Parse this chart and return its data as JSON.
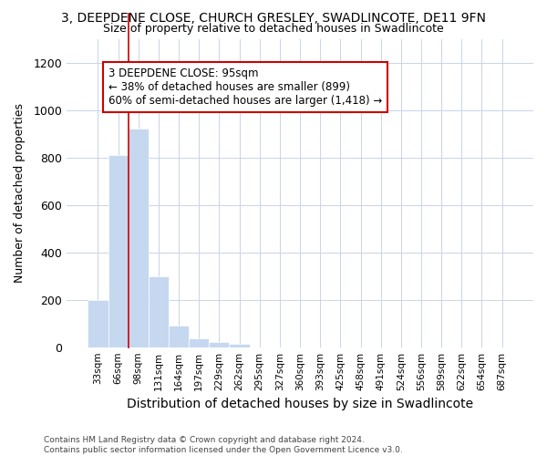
{
  "title": "3, DEEPDENE CLOSE, CHURCH GRESLEY, SWADLINCOTE, DE11 9FN",
  "subtitle": "Size of property relative to detached houses in Swadlincote",
  "xlabel": "Distribution of detached houses by size in Swadlincote",
  "ylabel": "Number of detached properties",
  "categories": [
    "33sqm",
    "66sqm",
    "98sqm",
    "131sqm",
    "164sqm",
    "197sqm",
    "229sqm",
    "262sqm",
    "295sqm",
    "327sqm",
    "360sqm",
    "393sqm",
    "425sqm",
    "458sqm",
    "491sqm",
    "524sqm",
    "556sqm",
    "589sqm",
    "622sqm",
    "654sqm",
    "687sqm"
  ],
  "values": [
    197,
    810,
    922,
    297,
    90,
    38,
    20,
    15,
    0,
    0,
    0,
    0,
    0,
    0,
    0,
    0,
    0,
    0,
    0,
    0,
    0
  ],
  "bar_color": "#c5d8f0",
  "bar_edge_color": "#c5d8f0",
  "grid_color": "#c8d4e8",
  "background_color": "#ffffff",
  "fig_background_color": "#ffffff",
  "annotation_box_color": "#ffffff",
  "annotation_border_color": "#cc0000",
  "property_line_color": "#cc0000",
  "property_line_index": 2,
  "annotation_text_line1": "3 DEEPDENE CLOSE: 95sqm",
  "annotation_text_line2": "← 38% of detached houses are smaller (899)",
  "annotation_text_line3": "60% of semi-detached houses are larger (1,418) →",
  "ylim": [
    0,
    1300
  ],
  "yticks": [
    0,
    200,
    400,
    600,
    800,
    1000,
    1200
  ],
  "footer_line1": "Contains HM Land Registry data © Crown copyright and database right 2024.",
  "footer_line2": "Contains public sector information licensed under the Open Government Licence v3.0."
}
